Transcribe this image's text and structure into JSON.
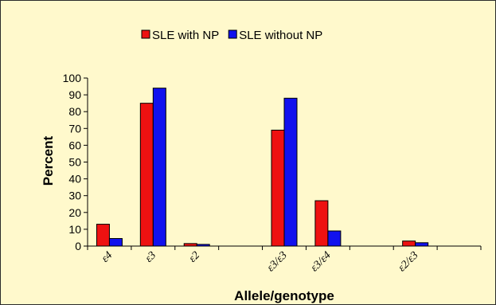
{
  "chart_data": {
    "type": "bar",
    "categories": [
      "ε4",
      "ε3",
      "ε2",
      "",
      "ε3/ε3",
      "ε3/ε4",
      "",
      "ε2/ε3",
      ""
    ],
    "series": [
      {
        "name": "SLE with NP",
        "color": "#ee1111",
        "values": [
          13,
          85,
          1.5,
          null,
          69,
          27,
          null,
          3,
          null
        ]
      },
      {
        "name": "SLE without NP",
        "color": "#1111ee",
        "values": [
          4.5,
          94,
          1,
          null,
          88,
          9,
          null,
          2,
          null
        ]
      }
    ],
    "ylim": [
      0,
      100
    ],
    "yticks": [
      0,
      10,
      20,
      30,
      40,
      50,
      60,
      70,
      80,
      90,
      100
    ],
    "xlabel": "Allele/genotype",
    "ylabel": "Percent",
    "legend": "top",
    "grid": false
  }
}
